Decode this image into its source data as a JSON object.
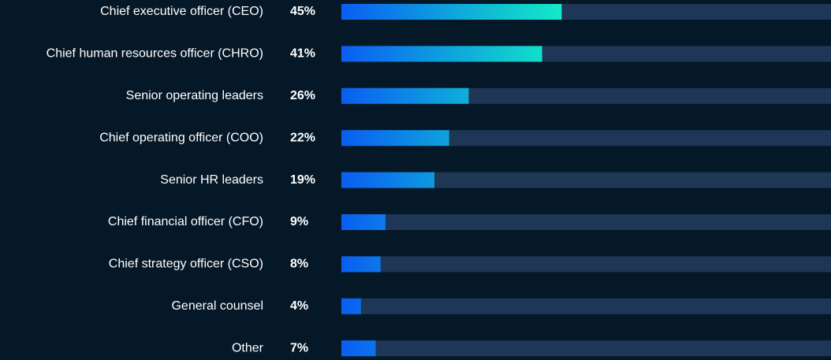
{
  "chart_data": {
    "type": "bar",
    "orientation": "horizontal",
    "categories": [
      "Chief executive officer (CEO)",
      "Chief human resources officer (CHRO)",
      "Senior operating leaders",
      "Chief operating officer (COO)",
      "Senior HR leaders",
      "Chief financial officer (CFO)",
      "Chief strategy officer (CSO)",
      "General counsel",
      "Other"
    ],
    "values": [
      45,
      41,
      26,
      22,
      19,
      9,
      8,
      4,
      7
    ],
    "value_labels": [
      "45%",
      "41%",
      "26%",
      "22%",
      "19%",
      "9%",
      "8%",
      "4%",
      "7%"
    ],
    "xlim": [
      0,
      100
    ],
    "colors": [
      "#0a5ef2",
      "#13ecc6"
    ],
    "track_color": "#1f3756"
  }
}
